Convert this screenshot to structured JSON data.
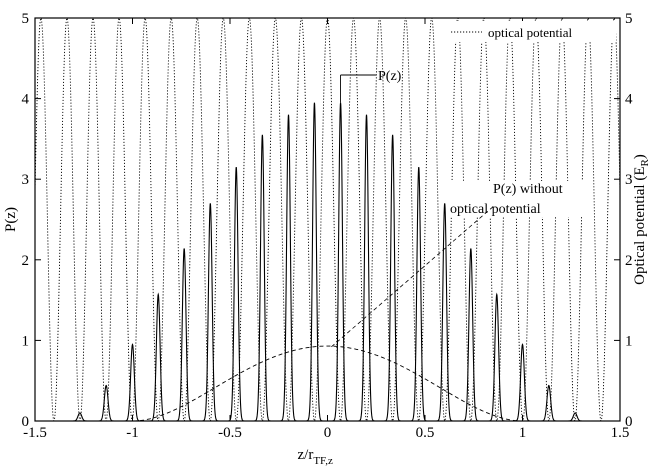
{
  "chart_data": {
    "type": "line",
    "xlabel_main": "z/r",
    "xlabel_sub": "TF,z",
    "ylabel_left": "P(z)",
    "ylabel_right_main": "Optical potential (E",
    "ylabel_right_sub": "R",
    "ylabel_right_close": ")",
    "xlim": [
      -1.5,
      1.5
    ],
    "ylim": [
      0,
      5
    ],
    "y2lim": [
      0,
      5
    ],
    "xticks": [
      "-1.5",
      "-1",
      "-0.5",
      "0",
      "0.5",
      "1",
      "1.5"
    ],
    "xtick_values": [
      -1.5,
      -1,
      -0.5,
      0,
      0.5,
      1,
      1.5
    ],
    "yticks": [
      "0",
      "1",
      "2",
      "3",
      "4",
      "5"
    ],
    "ytick_values": [
      0,
      1,
      2,
      3,
      4,
      5
    ],
    "y2ticks": [
      "0",
      "1",
      "2",
      "3",
      "4",
      "5"
    ],
    "grid": false,
    "legend_position": "top-right",
    "series": [
      {
        "name": "optical potential",
        "style": "dotted",
        "kind": "cos2",
        "amplitude": 5,
        "period": 0.1336
      },
      {
        "name": "P(z)",
        "style": "solid",
        "kind": "peaks",
        "peaks": [
          {
            "x": -1.27,
            "y": 0.1
          },
          {
            "x": -1.135,
            "y": 0.44
          },
          {
            "x": -1.0,
            "y": 0.95
          },
          {
            "x": -0.868,
            "y": 1.57
          },
          {
            "x": -0.735,
            "y": 2.14
          },
          {
            "x": -0.601,
            "y": 2.7
          },
          {
            "x": -0.468,
            "y": 3.15
          },
          {
            "x": -0.334,
            "y": 3.55
          },
          {
            "x": -0.2,
            "y": 3.8
          },
          {
            "x": -0.067,
            "y": 3.95
          },
          {
            "x": 0.067,
            "y": 3.95
          },
          {
            "x": 0.2,
            "y": 3.8
          },
          {
            "x": 0.334,
            "y": 3.55
          },
          {
            "x": 0.468,
            "y": 3.15
          },
          {
            "x": 0.601,
            "y": 2.7
          },
          {
            "x": 0.735,
            "y": 2.14
          },
          {
            "x": 0.868,
            "y": 1.57
          },
          {
            "x": 1.0,
            "y": 0.95
          },
          {
            "x": 1.135,
            "y": 0.44
          },
          {
            "x": 1.27,
            "y": 0.1
          }
        ]
      },
      {
        "name": "P(z) without optical potential",
        "style": "dashed",
        "kind": "thomas-fermi",
        "peak": 0.93,
        "support": [
          -1,
          1
        ]
      }
    ],
    "annotations": [
      {
        "text": "P(z)",
        "target": "P(z)"
      },
      {
        "text_line1": "P(z) without",
        "text_line2": "optical potential",
        "target": "P(z) without optical potential"
      }
    ],
    "legend": {
      "label": "optical potential"
    }
  }
}
